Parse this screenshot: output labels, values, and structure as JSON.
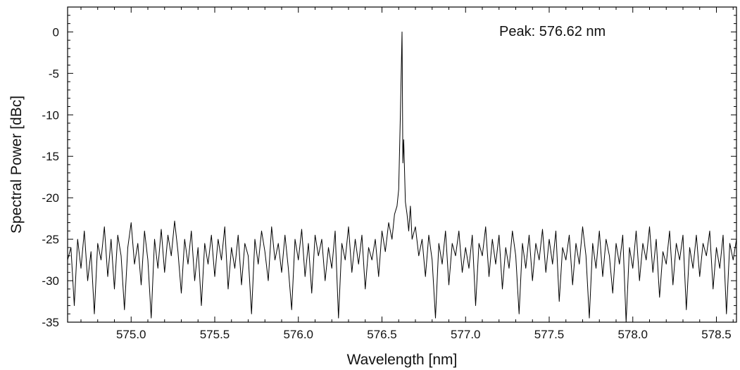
{
  "chart_data": {
    "type": "line",
    "title": "",
    "xlabel": "Wavelength [nm]",
    "ylabel": "Spectral Power [dBc]",
    "xlim": [
      574.62,
      578.62
    ],
    "ylim": [
      -35,
      3
    ],
    "xticks": [
      575.0,
      575.5,
      576.0,
      576.5,
      577.0,
      577.5,
      578.0,
      578.5
    ],
    "xtick_labels": [
      "575.0",
      "575.5",
      "576.0",
      "576.5",
      "577.0",
      "577.5",
      "578.0",
      "578.5"
    ],
    "yticks": [
      0,
      -5,
      -10,
      -15,
      -20,
      -25,
      -30,
      -35
    ],
    "ytick_labels": [
      "0",
      "-5",
      "-10",
      "-15",
      "-20",
      "-25",
      "-30",
      "-35"
    ],
    "grid": false,
    "legend": "none",
    "line_color": "#000000",
    "annotation": "Peak: 576.62 nm",
    "series": [
      {
        "name": "",
        "points": [
          [
            574.62,
            -27.5
          ],
          [
            574.64,
            -26.0
          ],
          [
            574.66,
            -33.0
          ],
          [
            574.68,
            -25.0
          ],
          [
            574.7,
            -28.5
          ],
          [
            574.72,
            -24.0
          ],
          [
            574.74,
            -30.0
          ],
          [
            574.76,
            -26.5
          ],
          [
            574.78,
            -34.0
          ],
          [
            574.8,
            -25.5
          ],
          [
            574.82,
            -27.5
          ],
          [
            574.84,
            -23.5
          ],
          [
            574.86,
            -29.5
          ],
          [
            574.88,
            -25.0
          ],
          [
            574.9,
            -31.0
          ],
          [
            574.92,
            -24.5
          ],
          [
            574.94,
            -27.0
          ],
          [
            574.96,
            -33.5
          ],
          [
            574.98,
            -26.0
          ],
          [
            575.0,
            -23.0
          ],
          [
            575.02,
            -28.0
          ],
          [
            575.04,
            -25.5
          ],
          [
            575.06,
            -30.5
          ],
          [
            575.08,
            -24.0
          ],
          [
            575.1,
            -27.5
          ],
          [
            575.12,
            -34.5
          ],
          [
            575.14,
            -25.0
          ],
          [
            575.16,
            -28.5
          ],
          [
            575.18,
            -23.8
          ],
          [
            575.2,
            -29.0
          ],
          [
            575.22,
            -24.5
          ],
          [
            575.24,
            -27.0
          ],
          [
            575.26,
            -22.8
          ],
          [
            575.28,
            -26.5
          ],
          [
            575.3,
            -31.5
          ],
          [
            575.32,
            -25.0
          ],
          [
            575.34,
            -28.0
          ],
          [
            575.36,
            -24.0
          ],
          [
            575.38,
            -30.0
          ],
          [
            575.4,
            -26.0
          ],
          [
            575.42,
            -33.0
          ],
          [
            575.44,
            -25.5
          ],
          [
            575.46,
            -28.0
          ],
          [
            575.48,
            -24.5
          ],
          [
            575.5,
            -29.5
          ],
          [
            575.52,
            -25.0
          ],
          [
            575.54,
            -27.5
          ],
          [
            575.56,
            -23.5
          ],
          [
            575.58,
            -31.0
          ],
          [
            575.6,
            -26.0
          ],
          [
            575.62,
            -28.5
          ],
          [
            575.64,
            -24.5
          ],
          [
            575.66,
            -30.5
          ],
          [
            575.68,
            -25.5
          ],
          [
            575.7,
            -27.0
          ],
          [
            575.72,
            -34.0
          ],
          [
            575.74,
            -25.0
          ],
          [
            575.76,
            -28.0
          ],
          [
            575.78,
            -24.0
          ],
          [
            575.8,
            -26.5
          ],
          [
            575.82,
            -30.0
          ],
          [
            575.84,
            -23.5
          ],
          [
            575.86,
            -27.5
          ],
          [
            575.88,
            -25.5
          ],
          [
            575.9,
            -29.0
          ],
          [
            575.92,
            -24.5
          ],
          [
            575.94,
            -28.5
          ],
          [
            575.96,
            -33.5
          ],
          [
            575.98,
            -25.0
          ],
          [
            576.0,
            -27.5
          ],
          [
            576.02,
            -23.8
          ],
          [
            576.04,
            -29.5
          ],
          [
            576.06,
            -25.5
          ],
          [
            576.08,
            -31.5
          ],
          [
            576.1,
            -24.5
          ],
          [
            576.12,
            -27.0
          ],
          [
            576.14,
            -25.0
          ],
          [
            576.16,
            -30.0
          ],
          [
            576.18,
            -26.0
          ],
          [
            576.2,
            -28.5
          ],
          [
            576.22,
            -24.0
          ],
          [
            576.24,
            -34.5
          ],
          [
            576.26,
            -25.5
          ],
          [
            576.28,
            -27.5
          ],
          [
            576.3,
            -23.5
          ],
          [
            576.32,
            -29.0
          ],
          [
            576.34,
            -25.0
          ],
          [
            576.36,
            -28.0
          ],
          [
            576.38,
            -24.5
          ],
          [
            576.4,
            -31.0
          ],
          [
            576.42,
            -26.0
          ],
          [
            576.44,
            -27.5
          ],
          [
            576.46,
            -25.0
          ],
          [
            576.48,
            -29.5
          ],
          [
            576.5,
            -24.0
          ],
          [
            576.52,
            -26.5
          ],
          [
            576.54,
            -23.0
          ],
          [
            576.56,
            -25.0
          ],
          [
            576.575,
            -22.0
          ],
          [
            576.59,
            -21.0
          ],
          [
            576.6,
            -19.0
          ],
          [
            576.61,
            -10.0
          ],
          [
            576.62,
            0.0
          ],
          [
            576.625,
            -15.8
          ],
          [
            576.63,
            -13.0
          ],
          [
            576.64,
            -20.5
          ],
          [
            576.65,
            -22.0
          ],
          [
            576.66,
            -24.0
          ],
          [
            576.67,
            -21.0
          ],
          [
            576.68,
            -25.0
          ],
          [
            576.7,
            -23.5
          ],
          [
            576.72,
            -27.0
          ],
          [
            576.74,
            -25.0
          ],
          [
            576.76,
            -29.5
          ],
          [
            576.78,
            -24.5
          ],
          [
            576.8,
            -27.5
          ],
          [
            576.82,
            -34.5
          ],
          [
            576.84,
            -25.5
          ],
          [
            576.86,
            -28.0
          ],
          [
            576.88,
            -24.0
          ],
          [
            576.9,
            -30.5
          ],
          [
            576.92,
            -25.5
          ],
          [
            576.94,
            -27.0
          ],
          [
            576.96,
            -24.0
          ],
          [
            576.98,
            -29.0
          ],
          [
            577.0,
            -26.0
          ],
          [
            577.02,
            -28.5
          ],
          [
            577.04,
            -24.5
          ],
          [
            577.06,
            -33.0
          ],
          [
            577.08,
            -25.5
          ],
          [
            577.1,
            -27.0
          ],
          [
            577.12,
            -23.5
          ],
          [
            577.14,
            -29.5
          ],
          [
            577.16,
            -25.0
          ],
          [
            577.18,
            -28.0
          ],
          [
            577.2,
            -24.5
          ],
          [
            577.22,
            -31.0
          ],
          [
            577.24,
            -26.0
          ],
          [
            577.26,
            -28.5
          ],
          [
            577.28,
            -24.0
          ],
          [
            577.3,
            -27.0
          ],
          [
            577.32,
            -34.0
          ],
          [
            577.34,
            -25.5
          ],
          [
            577.36,
            -28.5
          ],
          [
            577.38,
            -24.5
          ],
          [
            577.4,
            -30.0
          ],
          [
            577.42,
            -25.5
          ],
          [
            577.44,
            -27.5
          ],
          [
            577.46,
            -23.8
          ],
          [
            577.48,
            -29.0
          ],
          [
            577.5,
            -25.0
          ],
          [
            577.52,
            -28.0
          ],
          [
            577.54,
            -24.0
          ],
          [
            577.56,
            -32.5
          ],
          [
            577.58,
            -26.0
          ],
          [
            577.6,
            -27.5
          ],
          [
            577.62,
            -24.5
          ],
          [
            577.64,
            -30.5
          ],
          [
            577.66,
            -25.5
          ],
          [
            577.68,
            -28.0
          ],
          [
            577.7,
            -23.5
          ],
          [
            577.72,
            -27.0
          ],
          [
            577.74,
            -34.5
          ],
          [
            577.76,
            -25.5
          ],
          [
            577.78,
            -28.5
          ],
          [
            577.8,
            -24.0
          ],
          [
            577.82,
            -29.5
          ],
          [
            577.84,
            -25.0
          ],
          [
            577.86,
            -27.0
          ],
          [
            577.88,
            -31.5
          ],
          [
            577.9,
            -25.5
          ],
          [
            577.92,
            -28.0
          ],
          [
            577.94,
            -24.5
          ],
          [
            577.96,
            -35.0
          ],
          [
            577.98,
            -26.0
          ],
          [
            578.0,
            -28.5
          ],
          [
            578.02,
            -24.0
          ],
          [
            578.04,
            -30.0
          ],
          [
            578.06,
            -25.5
          ],
          [
            578.08,
            -27.5
          ],
          [
            578.1,
            -23.5
          ],
          [
            578.12,
            -29.0
          ],
          [
            578.14,
            -25.0
          ],
          [
            578.16,
            -32.0
          ],
          [
            578.18,
            -26.5
          ],
          [
            578.2,
            -28.0
          ],
          [
            578.22,
            -24.0
          ],
          [
            578.24,
            -30.5
          ],
          [
            578.26,
            -25.5
          ],
          [
            578.28,
            -27.5
          ],
          [
            578.3,
            -24.5
          ],
          [
            578.32,
            -33.5
          ],
          [
            578.34,
            -26.0
          ],
          [
            578.36,
            -28.5
          ],
          [
            578.38,
            -24.5
          ],
          [
            578.4,
            -29.5
          ],
          [
            578.42,
            -25.5
          ],
          [
            578.44,
            -27.0
          ],
          [
            578.46,
            -24.0
          ],
          [
            578.48,
            -31.0
          ],
          [
            578.5,
            -26.0
          ],
          [
            578.52,
            -28.5
          ],
          [
            578.54,
            -24.5
          ],
          [
            578.56,
            -34.0
          ],
          [
            578.58,
            -25.5
          ],
          [
            578.6,
            -27.5
          ],
          [
            578.62,
            -25.0
          ]
        ]
      }
    ]
  }
}
